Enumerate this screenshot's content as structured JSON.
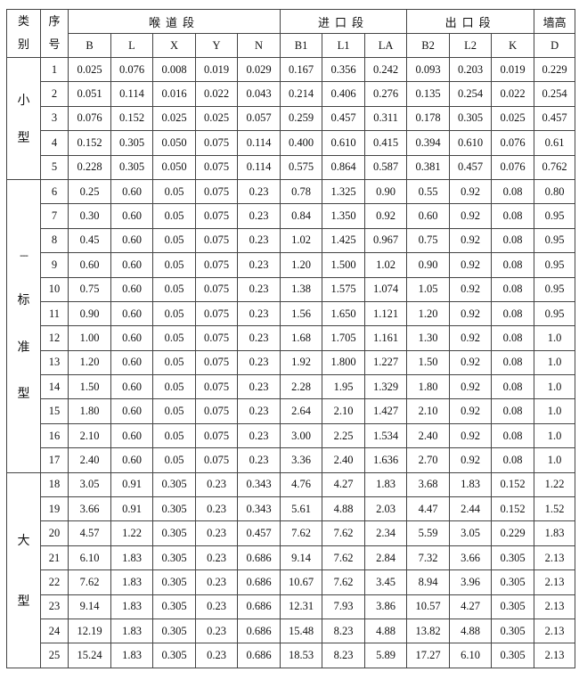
{
  "header": {
    "category": [
      "类",
      "别"
    ],
    "index": [
      "序",
      "号"
    ],
    "throat_section": "喉道段",
    "inlet_section": "进口段",
    "outlet_section": "出口段",
    "wall_height": "墙高",
    "throat_cols": [
      "B",
      "L",
      "X",
      "Y",
      "N"
    ],
    "inlet_cols": [
      "B1",
      "L1",
      "LA"
    ],
    "outlet_cols": [
      "B2",
      "L2",
      "K"
    ],
    "wall_cols": [
      "D"
    ]
  },
  "groups": [
    {
      "label_chars": [
        "小",
        "型"
      ],
      "prefix": "",
      "rows": [
        [
          "1",
          "0.025",
          "0.076",
          "0.008",
          "0.019",
          "0.029",
          "0.167",
          "0.356",
          "0.242",
          "0.093",
          "0.203",
          "0.019",
          "0.229"
        ],
        [
          "2",
          "0.051",
          "0.114",
          "0.016",
          "0.022",
          "0.043",
          "0.214",
          "0.406",
          "0.276",
          "0.135",
          "0.254",
          "0.022",
          "0.254"
        ],
        [
          "3",
          "0.076",
          "0.152",
          "0.025",
          "0.025",
          "0.057",
          "0.259",
          "0.457",
          "0.311",
          "0.178",
          "0.305",
          "0.025",
          "0.457"
        ],
        [
          "4",
          "0.152",
          "0.305",
          "0.050",
          "0.075",
          "0.114",
          "0.400",
          "0.610",
          "0.415",
          "0.394",
          "0.610",
          "0.076",
          "0.61"
        ],
        [
          "5",
          "0.228",
          "0.305",
          "0.050",
          "0.075",
          "0.114",
          "0.575",
          "0.864",
          "0.587",
          "0.381",
          "0.457",
          "0.076",
          "0.762"
        ]
      ]
    },
    {
      "label_chars": [
        "标",
        "准",
        "型"
      ],
      "prefix": "---",
      "rows": [
        [
          "6",
          "0.25",
          "0.60",
          "0.05",
          "0.075",
          "0.23",
          "0.78",
          "1.325",
          "0.90",
          "0.55",
          "0.92",
          "0.08",
          "0.80"
        ],
        [
          "7",
          "0.30",
          "0.60",
          "0.05",
          "0.075",
          "0.23",
          "0.84",
          "1.350",
          "0.92",
          "0.60",
          "0.92",
          "0.08",
          "0.95"
        ],
        [
          "8",
          "0.45",
          "0.60",
          "0.05",
          "0.075",
          "0.23",
          "1.02",
          "1.425",
          "0.967",
          "0.75",
          "0.92",
          "0.08",
          "0.95"
        ],
        [
          "9",
          "0.60",
          "0.60",
          "0.05",
          "0.075",
          "0.23",
          "1.20",
          "1.500",
          "1.02",
          "0.90",
          "0.92",
          "0.08",
          "0.95"
        ],
        [
          "10",
          "0.75",
          "0.60",
          "0.05",
          "0.075",
          "0.23",
          "1.38",
          "1.575",
          "1.074",
          "1.05",
          "0.92",
          "0.08",
          "0.95"
        ],
        [
          "11",
          "0.90",
          "0.60",
          "0.05",
          "0.075",
          "0.23",
          "1.56",
          "1.650",
          "1.121",
          "1.20",
          "0.92",
          "0.08",
          "0.95"
        ],
        [
          "12",
          "1.00",
          "0.60",
          "0.05",
          "0.075",
          "0.23",
          "1.68",
          "1.705",
          "1.161",
          "1.30",
          "0.92",
          "0.08",
          "1.0"
        ],
        [
          "13",
          "1.20",
          "0.60",
          "0.05",
          "0.075",
          "0.23",
          "1.92",
          "1.800",
          "1.227",
          "1.50",
          "0.92",
          "0.08",
          "1.0"
        ],
        [
          "14",
          "1.50",
          "0.60",
          "0.05",
          "0.075",
          "0.23",
          "2.28",
          "1.95",
          "1.329",
          "1.80",
          "0.92",
          "0.08",
          "1.0"
        ],
        [
          "15",
          "1.80",
          "0.60",
          "0.05",
          "0.075",
          "0.23",
          "2.64",
          "2.10",
          "1.427",
          "2.10",
          "0.92",
          "0.08",
          "1.0"
        ],
        [
          "16",
          "2.10",
          "0.60",
          "0.05",
          "0.075",
          "0.23",
          "3.00",
          "2.25",
          "1.534",
          "2.40",
          "0.92",
          "0.08",
          "1.0"
        ],
        [
          "17",
          "2.40",
          "0.60",
          "0.05",
          "0.075",
          "0.23",
          "3.36",
          "2.40",
          "1.636",
          "2.70",
          "0.92",
          "0.08",
          "1.0"
        ]
      ]
    },
    {
      "label_chars": [
        "大",
        "型"
      ],
      "prefix": "",
      "rows": [
        [
          "18",
          "3.05",
          "0.91",
          "0.305",
          "0.23",
          "0.343",
          "4.76",
          "4.27",
          "1.83",
          "3.68",
          "1.83",
          "0.152",
          "1.22"
        ],
        [
          "19",
          "3.66",
          "0.91",
          "0.305",
          "0.23",
          "0.343",
          "5.61",
          "4.88",
          "2.03",
          "4.47",
          "2.44",
          "0.152",
          "1.52"
        ],
        [
          "20",
          "4.57",
          "1.22",
          "0.305",
          "0.23",
          "0.457",
          "7.62",
          "7.62",
          "2.34",
          "5.59",
          "3.05",
          "0.229",
          "1.83"
        ],
        [
          "21",
          "6.10",
          "1.83",
          "0.305",
          "0.23",
          "0.686",
          "9.14",
          "7.62",
          "2.84",
          "7.32",
          "3.66",
          "0.305",
          "2.13"
        ],
        [
          "22",
          "7.62",
          "1.83",
          "0.305",
          "0.23",
          "0.686",
          "10.67",
          "7.62",
          "3.45",
          "8.94",
          "3.96",
          "0.305",
          "2.13"
        ],
        [
          "23",
          "9.14",
          "1.83",
          "0.305",
          "0.23",
          "0.686",
          "12.31",
          "7.93",
          "3.86",
          "10.57",
          "4.27",
          "0.305",
          "2.13"
        ],
        [
          "24",
          "12.19",
          "1.83",
          "0.305",
          "0.23",
          "0.686",
          "15.48",
          "8.23",
          "4.88",
          "13.82",
          "4.88",
          "0.305",
          "2.13"
        ],
        [
          "25",
          "15.24",
          "1.83",
          "0.305",
          "0.23",
          "0.686",
          "18.53",
          "8.23",
          "5.89",
          "17.27",
          "6.10",
          "0.305",
          "2.13"
        ]
      ]
    }
  ]
}
